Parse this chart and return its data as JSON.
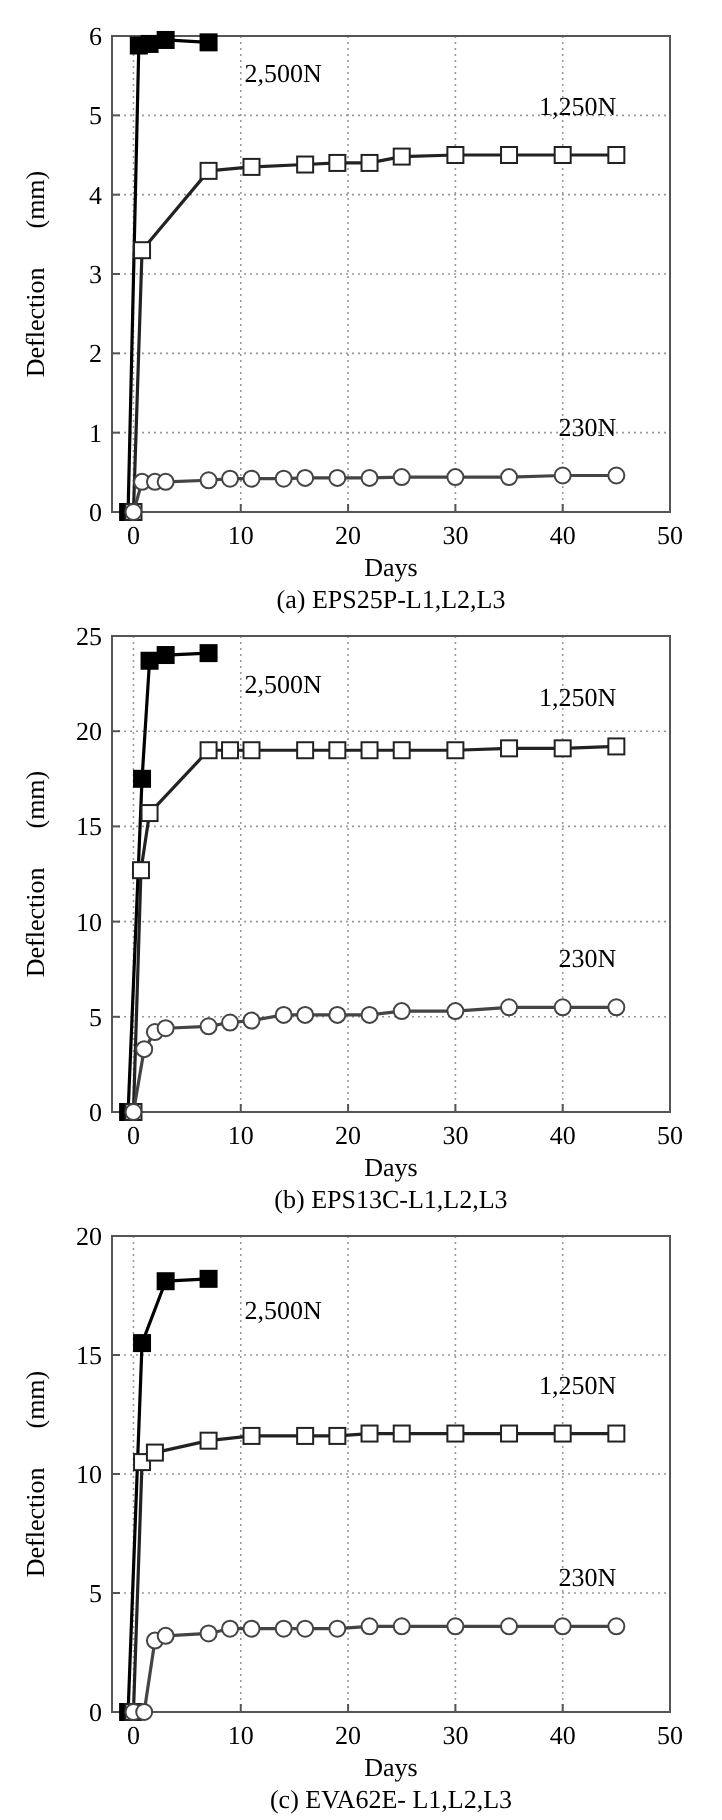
{
  "chart_data": [
    {
      "type": "line",
      "title": "(a) EPS25P-L1,L2,L3",
      "xlabel": "Days",
      "ylabel": "Deflection      (mm)",
      "xlim": [
        -2,
        50
      ],
      "xticks": [
        0,
        10,
        20,
        30,
        40,
        50
      ],
      "ylim": [
        0,
        6
      ],
      "yticks": [
        0,
        1,
        2,
        3,
        4,
        5,
        6
      ],
      "grid": true,
      "line_style": "solid",
      "series": [
        {
          "name": "2,500N",
          "color": "#000000",
          "marker": "square",
          "x": [
            -0.5,
            0.5,
            1.5,
            3,
            7
          ],
          "values": [
            0,
            5.88,
            5.9,
            5.95,
            5.92
          ]
        },
        {
          "name": "1,250N",
          "color": "#222222",
          "marker": "square",
          "x": [
            0,
            0.8,
            7,
            11,
            16,
            19,
            22,
            25,
            30,
            35,
            40,
            45
          ],
          "values": [
            0,
            3.3,
            4.3,
            4.35,
            4.38,
            4.4,
            4.4,
            4.48,
            4.5,
            4.5,
            4.5,
            4.5
          ]
        },
        {
          "name": "230N",
          "color": "#444444",
          "marker": "circle",
          "x": [
            0,
            0.8,
            2,
            3,
            7,
            9,
            11,
            14,
            16,
            19,
            22,
            25,
            30,
            35,
            40,
            45
          ],
          "values": [
            0,
            0.38,
            0.38,
            0.38,
            0.4,
            0.42,
            0.42,
            0.42,
            0.43,
            0.43,
            0.43,
            0.44,
            0.44,
            0.44,
            0.46,
            0.46
          ]
        }
      ]
    },
    {
      "type": "line",
      "title": "(b) EPS13C-L1,L2,L3",
      "xlabel": "Days",
      "ylabel": "Deflection      (mm)",
      "xlim": [
        -2,
        50
      ],
      "xticks": [
        0,
        10,
        20,
        30,
        40,
        50
      ],
      "ylim": [
        0,
        25
      ],
      "yticks": [
        0,
        5,
        10,
        15,
        20,
        25
      ],
      "grid": true,
      "line_style": "solid",
      "series": [
        {
          "name": "2,500N",
          "color": "#000000",
          "marker": "square",
          "x": [
            -0.5,
            0.8,
            1.5,
            3,
            7
          ],
          "values": [
            0,
            17.5,
            23.7,
            24,
            24.1
          ]
        },
        {
          "name": "1,250N",
          "color": "#222222",
          "marker": "square",
          "x": [
            0,
            0.7,
            1.5,
            7,
            9,
            11,
            16,
            19,
            22,
            25,
            30,
            35,
            40,
            45
          ],
          "values": [
            0,
            12.7,
            15.7,
            19,
            19,
            19,
            19,
            19,
            19,
            19,
            19,
            19.1,
            19.1,
            19.2
          ]
        },
        {
          "name": "230N",
          "color": "#444444",
          "marker": "circle",
          "x": [
            0,
            1,
            2,
            3,
            7,
            9,
            11,
            14,
            16,
            19,
            22,
            25,
            30,
            35,
            40,
            45
          ],
          "values": [
            0,
            3.3,
            4.2,
            4.4,
            4.5,
            4.7,
            4.8,
            5.1,
            5.1,
            5.1,
            5.1,
            5.3,
            5.3,
            5.5,
            5.5,
            5.5
          ]
        }
      ]
    },
    {
      "type": "line",
      "title": "(c) EVA62E- L1,L2,L3",
      "xlabel": "Days",
      "ylabel": "Deflection      (mm)",
      "xlim": [
        -2,
        50
      ],
      "xticks": [
        0,
        10,
        20,
        30,
        40,
        50
      ],
      "ylim": [
        0,
        20
      ],
      "yticks": [
        0,
        5,
        10,
        15,
        20
      ],
      "grid": true,
      "line_style": "solid",
      "series": [
        {
          "name": "2,500N",
          "color": "#000000",
          "marker": "square",
          "x": [
            -0.5,
            0.8,
            3,
            7
          ],
          "values": [
            0,
            15.5,
            18.1,
            18.2
          ]
        },
        {
          "name": "1,250N",
          "color": "#222222",
          "marker": "square",
          "x": [
            0,
            0.8,
            2,
            7,
            11,
            16,
            19,
            22,
            25,
            30,
            35,
            40,
            45
          ],
          "values": [
            0,
            10.5,
            10.9,
            11.4,
            11.6,
            11.6,
            11.6,
            11.7,
            11.7,
            11.7,
            11.7,
            11.7,
            11.7
          ]
        },
        {
          "name": "230N",
          "color": "#444444",
          "marker": "circle",
          "x": [
            0,
            1,
            2,
            3,
            7,
            9,
            11,
            14,
            16,
            19,
            22,
            25,
            30,
            35,
            40,
            45
          ],
          "values": [
            0,
            0,
            3,
            3.2,
            3.3,
            3.5,
            3.5,
            3.5,
            3.5,
            3.5,
            3.6,
            3.6,
            3.6,
            3.6,
            3.6,
            3.6
          ]
        }
      ]
    }
  ]
}
